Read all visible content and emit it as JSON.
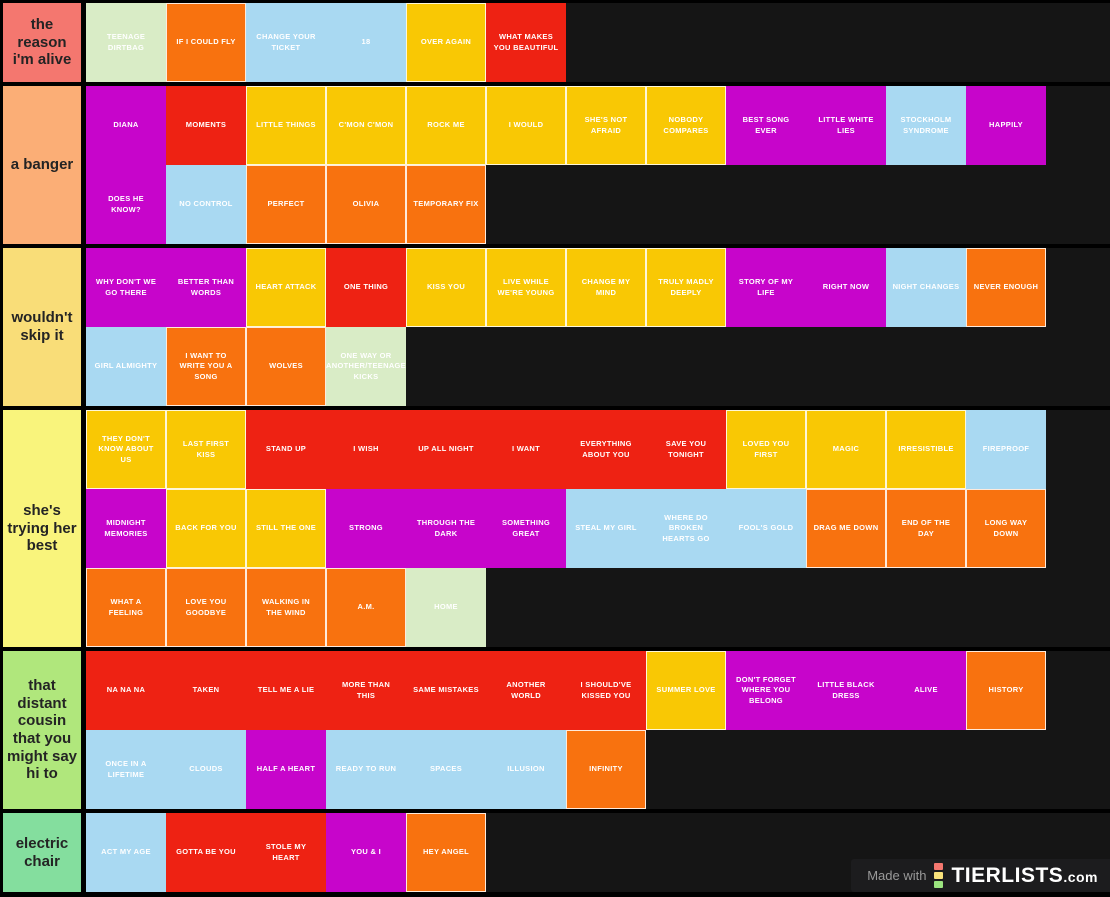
{
  "watermark": {
    "made_with": "Made with",
    "brand": "TIERLISTS",
    "suffix": ".com"
  },
  "albums": {
    "uan": {
      "name": "up-all-night",
      "color": "#ee2213",
      "bordered": false
    },
    "tmh": {
      "name": "take-me-home",
      "color": "#f9c804",
      "bordered": true
    },
    "mm": {
      "name": "midnight-memories",
      "color": "#c705cb",
      "bordered": false
    },
    "four": {
      "name": "four",
      "color": "#a9d9f2",
      "bordered": false
    },
    "am": {
      "name": "made-in-the-am",
      "color": "#f8720f",
      "bordered": true
    },
    "other": {
      "name": "non-album",
      "color": "#d9ecc6",
      "bordered": false
    }
  },
  "tiers": [
    {
      "label": "the reason i'm alive",
      "label_color": "#f4776f",
      "rows": [
        [
          {
            "label": "TEENAGE DIRTBAG",
            "album": "other"
          },
          {
            "label": "IF I COULD FLY",
            "album": "am"
          },
          {
            "label": "CHANGE YOUR TICKET",
            "album": "four"
          },
          {
            "label": "18",
            "album": "four"
          },
          {
            "label": "OVER AGAIN",
            "album": "tmh"
          },
          {
            "label": "WHAT MAKES YOU BEAUTIFUL",
            "album": "uan"
          }
        ]
      ]
    },
    {
      "label": "a banger",
      "label_color": "#fbae76",
      "rows": [
        [
          {
            "label": "DIANA",
            "album": "mm"
          },
          {
            "label": "MOMENTS",
            "album": "uan"
          },
          {
            "label": "LITTLE THINGS",
            "album": "tmh"
          },
          {
            "label": "C'MON C'MON",
            "album": "tmh"
          },
          {
            "label": "ROCK ME",
            "album": "tmh"
          },
          {
            "label": "I WOULD",
            "album": "tmh"
          },
          {
            "label": "SHE'S NOT AFRAID",
            "album": "tmh"
          },
          {
            "label": "NOBODY COMPARES",
            "album": "tmh"
          },
          {
            "label": "BEST SONG EVER",
            "album": "mm"
          },
          {
            "label": "LITTLE WHITE LIES",
            "album": "mm"
          },
          {
            "label": "STOCKHOLM SYNDROME",
            "album": "four"
          },
          {
            "label": "HAPPILY",
            "album": "mm"
          }
        ],
        [
          {
            "label": "DOES HE KNOW?",
            "album": "mm"
          },
          {
            "label": "NO CONTROL",
            "album": "four"
          },
          {
            "label": "PERFECT",
            "album": "am"
          },
          {
            "label": "OLIVIA",
            "album": "am"
          },
          {
            "label": "TEMPORARY FIX",
            "album": "am"
          }
        ]
      ]
    },
    {
      "label": "wouldn't skip it",
      "label_color": "#f9dd78",
      "rows": [
        [
          {
            "label": "WHY DON'T WE GO THERE",
            "album": "mm"
          },
          {
            "label": "BETTER THAN WORDS",
            "album": "mm"
          },
          {
            "label": "HEART ATTACK",
            "album": "tmh"
          },
          {
            "label": "ONE THING",
            "album": "uan"
          },
          {
            "label": "KISS YOU",
            "album": "tmh"
          },
          {
            "label": "LIVE WHILE WE'RE YOUNG",
            "album": "tmh"
          },
          {
            "label": "CHANGE MY MIND",
            "album": "tmh"
          },
          {
            "label": "TRULY MADLY DEEPLY",
            "album": "tmh"
          },
          {
            "label": "STORY OF MY LIFE",
            "album": "mm"
          },
          {
            "label": "RIGHT NOW",
            "album": "mm"
          },
          {
            "label": "NIGHT CHANGES",
            "album": "four"
          },
          {
            "label": "NEVER ENOUGH",
            "album": "am"
          }
        ],
        [
          {
            "label": "GIRL ALMIGHTY",
            "album": "four"
          },
          {
            "label": "I WANT TO WRITE YOU A SONG",
            "album": "am"
          },
          {
            "label": "WOLVES",
            "album": "am"
          },
          {
            "label": "ONE WAY OR ANOTHER/TEENAGE KICKS",
            "album": "other"
          }
        ]
      ]
    },
    {
      "label": "she's trying her best",
      "label_color": "#f9f47c",
      "rows": [
        [
          {
            "label": "THEY DON'T KNOW ABOUT US",
            "album": "tmh"
          },
          {
            "label": "LAST FIRST KISS",
            "album": "tmh"
          },
          {
            "label": "STAND UP",
            "album": "uan"
          },
          {
            "label": "I WISH",
            "album": "uan"
          },
          {
            "label": "UP ALL NIGHT",
            "album": "uan"
          },
          {
            "label": "I WANT",
            "album": "uan"
          },
          {
            "label": "EVERYTHING ABOUT YOU",
            "album": "uan"
          },
          {
            "label": "SAVE YOU TONIGHT",
            "album": "uan"
          },
          {
            "label": "LOVED YOU FIRST",
            "album": "tmh"
          },
          {
            "label": "MAGIC",
            "album": "tmh"
          },
          {
            "label": "IRRESISTIBLE",
            "album": "tmh"
          },
          {
            "label": "FIREPROOF",
            "album": "four"
          }
        ],
        [
          {
            "label": "MIDNIGHT MEMORIES",
            "album": "mm"
          },
          {
            "label": "BACK FOR YOU",
            "album": "tmh"
          },
          {
            "label": "STILL THE ONE",
            "album": "tmh"
          },
          {
            "label": "STRONG",
            "album": "mm"
          },
          {
            "label": "THROUGH THE DARK",
            "album": "mm"
          },
          {
            "label": "SOMETHING GREAT",
            "album": "mm"
          },
          {
            "label": "STEAL MY GIRL",
            "album": "four"
          },
          {
            "label": "WHERE DO BROKEN HEARTS GO",
            "album": "four"
          },
          {
            "label": "FOOL'S GOLD",
            "album": "four"
          },
          {
            "label": "DRAG ME DOWN",
            "album": "am"
          },
          {
            "label": "END OF THE DAY",
            "album": "am"
          },
          {
            "label": "LONG WAY DOWN",
            "album": "am"
          }
        ],
        [
          {
            "label": "WHAT A FEELING",
            "album": "am"
          },
          {
            "label": "LOVE YOU GOODBYE",
            "album": "am"
          },
          {
            "label": "WALKING IN THE WIND",
            "album": "am"
          },
          {
            "label": "A.M.",
            "album": "am"
          },
          {
            "label": "HOME",
            "album": "other"
          }
        ]
      ]
    },
    {
      "label": "that distant cousin that you might say hi to",
      "label_color": "#b0e77c",
      "rows": [
        [
          {
            "label": "NA NA NA",
            "album": "uan"
          },
          {
            "label": "TAKEN",
            "album": "uan"
          },
          {
            "label": "TELL ME A LIE",
            "album": "uan"
          },
          {
            "label": "MORE THAN THIS",
            "album": "uan"
          },
          {
            "label": "SAME MISTAKES",
            "album": "uan"
          },
          {
            "label": "ANOTHER WORLD",
            "album": "uan"
          },
          {
            "label": "I SHOULD'VE KISSED YOU",
            "album": "uan"
          },
          {
            "label": "SUMMER LOVE",
            "album": "tmh"
          },
          {
            "label": "DON'T FORGET WHERE YOU BELONG",
            "album": "mm"
          },
          {
            "label": "LITTLE BLACK DRESS",
            "album": "mm"
          },
          {
            "label": "ALIVE",
            "album": "mm"
          },
          {
            "label": "HISTORY",
            "album": "am"
          }
        ],
        [
          {
            "label": "ONCE IN A LIFETIME",
            "album": "four"
          },
          {
            "label": "CLOUDS",
            "album": "four"
          },
          {
            "label": "HALF A HEART",
            "album": "mm"
          },
          {
            "label": "READY TO RUN",
            "album": "four"
          },
          {
            "label": "SPACES",
            "album": "four"
          },
          {
            "label": "ILLUSION",
            "album": "four"
          },
          {
            "label": "INFINITY",
            "album": "am"
          }
        ]
      ]
    },
    {
      "label": "electric chair",
      "label_color": "#84de9e",
      "rows": [
        [
          {
            "label": "ACT MY AGE",
            "album": "four"
          },
          {
            "label": "GOTTA BE YOU",
            "album": "uan"
          },
          {
            "label": "STOLE MY HEART",
            "album": "uan"
          },
          {
            "label": "YOU & I",
            "album": "mm"
          },
          {
            "label": "HEY ANGEL",
            "album": "am"
          }
        ]
      ]
    }
  ],
  "icon_colors": {
    "top": "#f4776f",
    "middle": "#f9e27b",
    "bottom": "#9be47f"
  }
}
